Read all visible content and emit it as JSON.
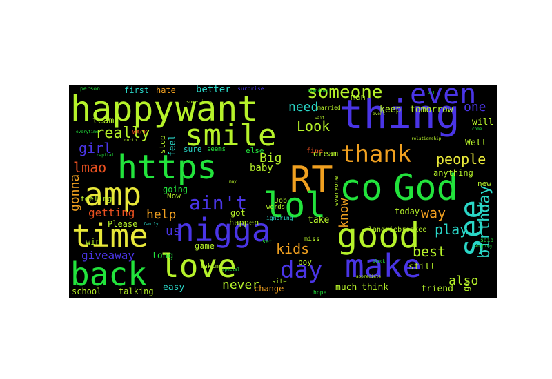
{
  "palette": {
    "background": "#000000",
    "page": "#ffffff",
    "lime": "#b6f22a",
    "green": "#22e33c",
    "blue": "#4a35e6",
    "cyan": "#2ad6c7",
    "orange": "#f0a020",
    "yellow": "#e8e83a",
    "red": "#e85020"
  },
  "words": {
    "happy": "happy",
    "want": "want",
    "thing": "thing",
    "even": "even",
    "someone": "someone",
    "smile": "smile",
    "https": "https",
    "amp": "amp",
    "rt": "RT",
    "lol": "lol",
    "co": "co",
    "god": "God",
    "time": "time",
    "nigga": "nigga",
    "good": "good",
    "love": "love",
    "back": "back",
    "make": "make",
    "see": "see",
    "thank": "thank",
    "day": "day",
    "aint": "ain't",
    "really": "really",
    "look": "Look",
    "need": "need",
    "one": "one",
    "people": "people",
    "birthday": "birthday",
    "kids": "kids",
    "best": "best",
    "play": "play",
    "way": "way",
    "lmao": "lmao",
    "girl": "girl",
    "gonna": "gonna",
    "giveaway": "giveaway",
    "help": "help",
    "big": "Big",
    "know": "know",
    "also": "also",
    "never": "never",
    "getting": "getting",
    "us": "us",
    "better": "better",
    "first": "first",
    "hate": "hate",
    "team": "team",
    "feel": "feel",
    "stop": "stop",
    "keep": "keep",
    "tomorrow": "tomorrow",
    "will": "will",
    "well": "Well",
    "dream": "dream",
    "fine": "fine",
    "baby": "baby",
    "going": "going",
    "sure": "sure",
    "feeling": "feeling",
    "now": "Now",
    "please": "Please",
    "win": "win",
    "long": "long",
    "easy": "easy",
    "game": "game",
    "happen": "happen",
    "got": "got",
    "job": "Job",
    "take": "take",
    "miss": "miss",
    "much": "much",
    "think": "think",
    "friend": "friend",
    "still": "still",
    "today": "today",
    "anything": "anything",
    "new": "new",
    "boy": "boy",
    "landriebrookee": "landriebrookee",
    "change": "change",
    "school": "school",
    "talking": "talking",
    "man": "man",
    "everyone": "everyone",
    "go": "go",
    "words": "words",
    "wack": "WACK",
    "person": "person",
    "surprise": "surprise",
    "said": "said",
    "hope": "hope",
    "ignoring": "ignoring",
    "seems": "seems",
    "else": "else",
    "set": "set",
    "married": "married",
    "site": "site",
    "capital": "capital",
    "north": "north",
    "laughing": "laughing",
    "event": "event",
    "taking": "taking",
    "special": "special",
    "family": "family",
    "sometimes": "sometimes",
    "come": "come",
    "relationship": "relationship",
    "everytime": "everytime",
    "appreciate": "appreciate",
    "black": "black",
    "wait": "wait",
    "tell": "tell",
    "may": "may",
    "standing": "standing"
  }
}
